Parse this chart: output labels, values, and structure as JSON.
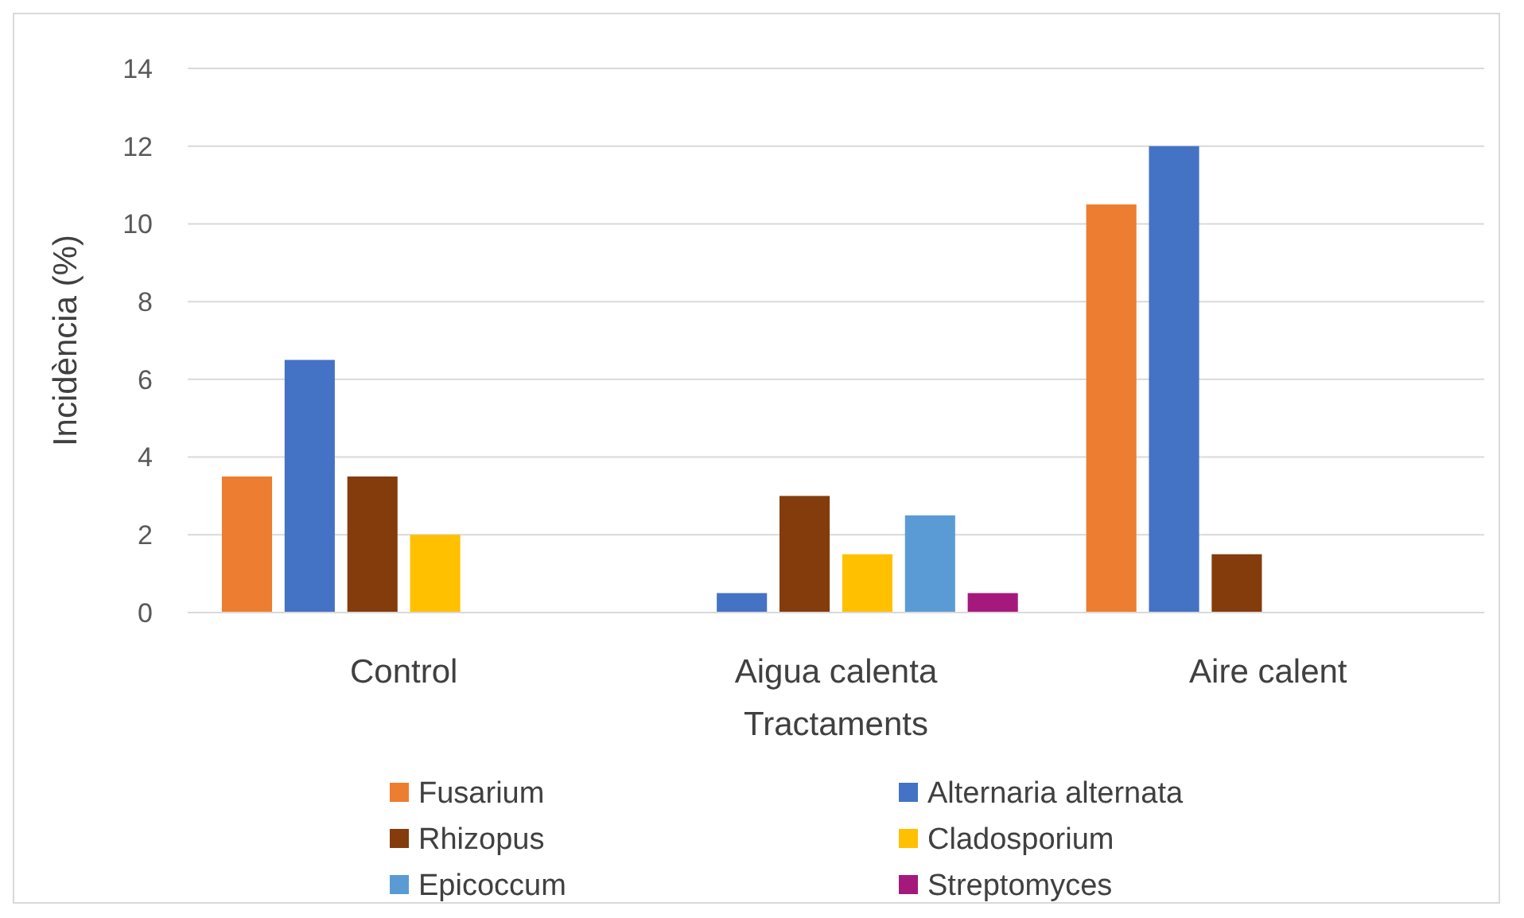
{
  "chart_data": {
    "type": "bar",
    "xlabel": "Tractaments",
    "ylabel": "Incidència (%)",
    "categories": [
      "Control",
      "Aigua calenta",
      "Aire calent"
    ],
    "series": [
      {
        "name": "Fusarium",
        "color": "#ed7d31",
        "values": [
          3.5,
          0,
          10.5
        ]
      },
      {
        "name": "Alternaria alternata",
        "color": "#4472c4",
        "values": [
          6.5,
          0.5,
          12
        ]
      },
      {
        "name": "Rhizopus",
        "color": "#843c0c",
        "values": [
          3.5,
          3,
          1.5
        ]
      },
      {
        "name": "Cladosporium",
        "color": "#ffc000",
        "values": [
          2,
          1.5,
          0
        ]
      },
      {
        "name": "Epicoccum",
        "color": "#5b9bd5",
        "values": [
          0,
          2.5,
          0
        ]
      },
      {
        "name": "Streptomyces",
        "color": "#a5197c",
        "values": [
          0,
          0.5,
          0
        ]
      }
    ],
    "ylim": [
      0,
      14
    ],
    "yticks": [
      0,
      2,
      4,
      6,
      8,
      10,
      12,
      14
    ],
    "grid": "y",
    "legend": "bottom"
  }
}
